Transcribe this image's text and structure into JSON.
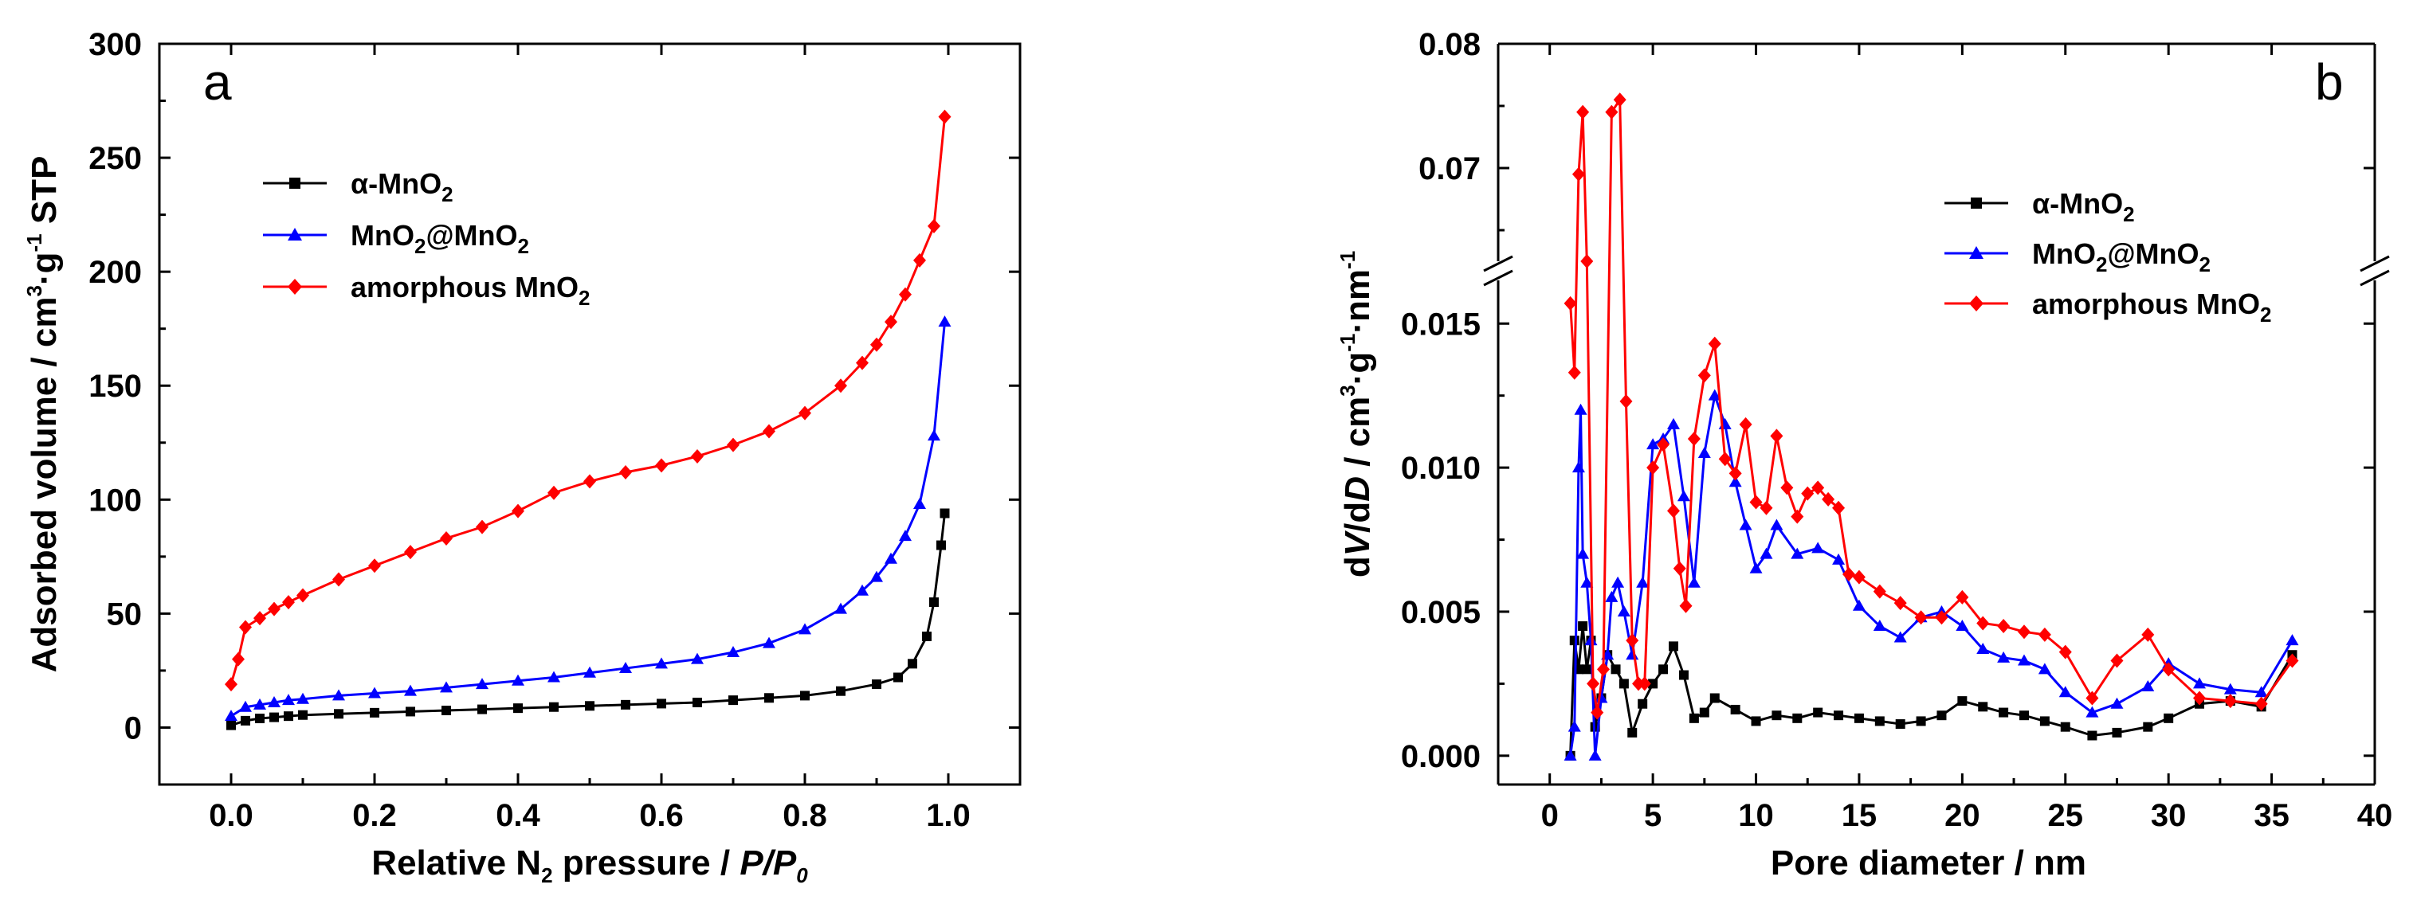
{
  "chart_data": [
    {
      "panel": "a",
      "type": "line",
      "xlabel_prefix": "Relative N",
      "xlabel_sub": "2",
      "xlabel_middle": " pressure / ",
      "xlabel_italic": "P/P",
      "xlabel_italic_sub": "0",
      "ylabel_text": "Adsorbed volume / cm",
      "ylabel_sup1": "3",
      "ylabel_dot": "·g",
      "ylabel_sup2": "-1",
      "ylabel_tail": " STP",
      "xlim": [
        -0.1,
        1.1
      ],
      "ylim": [
        -25,
        300
      ],
      "xticks": [
        0.0,
        0.2,
        0.4,
        0.6,
        0.8,
        1.0
      ],
      "xtick_labels": [
        "0.0",
        "0.2",
        "0.4",
        "0.6",
        "0.8",
        "1.0"
      ],
      "yticks": [
        0,
        50,
        100,
        150,
        200,
        250,
        300
      ],
      "ytick_labels": [
        "0",
        "50",
        "100",
        "150",
        "200",
        "250",
        "300"
      ],
      "legend_position": "upper-left",
      "series": [
        {
          "name": "α-MnO2",
          "label_main": "α-MnO",
          "label_sub": "2",
          "color": "#000000",
          "marker": "square",
          "x": [
            0.0,
            0.02,
            0.04,
            0.06,
            0.08,
            0.1,
            0.15,
            0.2,
            0.25,
            0.3,
            0.35,
            0.4,
            0.45,
            0.5,
            0.55,
            0.6,
            0.65,
            0.7,
            0.75,
            0.8,
            0.85,
            0.9,
            0.93,
            0.95,
            0.97,
            0.98,
            0.99,
            0.995
          ],
          "y": [
            1,
            3,
            4,
            4.5,
            5,
            5.5,
            6,
            6.5,
            7,
            7.5,
            8,
            8.5,
            9,
            9.5,
            10,
            10.5,
            11,
            12,
            13,
            14,
            16,
            19,
            22,
            28,
            40,
            55,
            80,
            94
          ]
        },
        {
          "name": "MnO2@MnO2",
          "label_main": "MnO",
          "label_sub": "2",
          "label_main2": "@MnO",
          "label_sub2": "2",
          "color": "#0000ff",
          "marker": "triangle",
          "x": [
            0.0,
            0.02,
            0.04,
            0.06,
            0.08,
            0.1,
            0.15,
            0.2,
            0.25,
            0.3,
            0.35,
            0.4,
            0.45,
            0.5,
            0.55,
            0.6,
            0.65,
            0.7,
            0.75,
            0.8,
            0.85,
            0.88,
            0.9,
            0.92,
            0.94,
            0.96,
            0.98,
            0.995
          ],
          "y": [
            5,
            9,
            10,
            11,
            12,
            12.5,
            14,
            15,
            16,
            17.5,
            19,
            20.5,
            22,
            24,
            26,
            28,
            30,
            33,
            37,
            43,
            52,
            60,
            66,
            74,
            84,
            98,
            128,
            178
          ]
        },
        {
          "name": "amorphous MnO2",
          "label_main": "amorphous MnO",
          "label_sub": "2",
          "color": "#ff0000",
          "marker": "diamond",
          "x": [
            0.0,
            0.01,
            0.02,
            0.04,
            0.06,
            0.08,
            0.1,
            0.15,
            0.2,
            0.25,
            0.3,
            0.35,
            0.4,
            0.45,
            0.5,
            0.55,
            0.6,
            0.65,
            0.7,
            0.75,
            0.8,
            0.85,
            0.88,
            0.9,
            0.92,
            0.94,
            0.96,
            0.98,
            0.995
          ],
          "y": [
            19,
            30,
            44,
            48,
            52,
            55,
            58,
            65,
            71,
            77,
            83,
            88,
            95,
            103,
            108,
            112,
            115,
            119,
            124,
            130,
            138,
            150,
            160,
            168,
            178,
            190,
            205,
            220,
            268
          ]
        }
      ]
    },
    {
      "panel": "b",
      "type": "line",
      "xlabel": "Pore diameter / nm",
      "ylabel_pre": "d",
      "ylabel_V": "V",
      "ylabel_mid": "/d",
      "ylabel_D": "D",
      "ylabel_units": " / cm",
      "ylabel_sup1": "3",
      "ylabel_dot1": "·g",
      "ylabel_sup2": "-1",
      "ylabel_dot2": "·nm",
      "ylabel_sup3": "-1",
      "xlim": [
        -2.5,
        40
      ],
      "ylim_lower": [
        -0.001,
        0.0165
      ],
      "ylim_upper": [
        0.0625,
        0.08
      ],
      "axis_break": true,
      "xticks": [
        0,
        5,
        10,
        15,
        20,
        25,
        30,
        35,
        40
      ],
      "xtick_labels": [
        "0",
        "5",
        "10",
        "15",
        "20",
        "25",
        "30",
        "35",
        "40"
      ],
      "yticks_lower": [
        0.0,
        0.005,
        0.01,
        0.015
      ],
      "ytick_labels_lower": [
        "0.000",
        "0.005",
        "0.010",
        "0.015"
      ],
      "yticks_upper": [
        0.07,
        0.08
      ],
      "ytick_labels_upper": [
        "0.07",
        "0.08"
      ],
      "legend_position": "upper-right",
      "series": [
        {
          "name": "α-MnO2",
          "label_main": "α-MnO",
          "label_sub": "2",
          "color": "#000000",
          "marker": "square",
          "x": [
            1.0,
            1.2,
            1.4,
            1.6,
            1.8,
            2.0,
            2.2,
            2.5,
            2.8,
            3.2,
            3.6,
            4.0,
            4.5,
            5.0,
            5.5,
            6.0,
            6.5,
            7.0,
            7.5,
            8.0,
            9.0,
            10.0,
            11.0,
            12.0,
            13.0,
            14.0,
            15.0,
            16.0,
            17.0,
            18.0,
            19.0,
            20.0,
            21.0,
            22.0,
            23.0,
            24.0,
            25.0,
            26.3,
            27.5,
            29.0,
            30.0,
            31.5,
            33.0,
            34.5,
            36.0
          ],
          "y": [
            0.0,
            0.004,
            0.003,
            0.0045,
            0.003,
            0.004,
            0.001,
            0.002,
            0.0035,
            0.003,
            0.0025,
            0.0008,
            0.0018,
            0.0025,
            0.003,
            0.0038,
            0.0028,
            0.0013,
            0.0015,
            0.002,
            0.0016,
            0.0012,
            0.0014,
            0.0013,
            0.0015,
            0.0014,
            0.0013,
            0.0012,
            0.0011,
            0.0012,
            0.0014,
            0.0019,
            0.0017,
            0.0015,
            0.0014,
            0.0012,
            0.001,
            0.0007,
            0.0008,
            0.001,
            0.0013,
            0.0018,
            0.0019,
            0.0017,
            0.0035
          ]
        },
        {
          "name": "MnO2@MnO2",
          "label_main": "MnO",
          "label_sub": "2",
          "label_main2": "@MnO",
          "label_sub2": "2",
          "color": "#0000ff",
          "marker": "triangle",
          "x": [
            1.0,
            1.2,
            1.4,
            1.5,
            1.6,
            1.8,
            2.0,
            2.2,
            2.5,
            2.8,
            3.0,
            3.3,
            3.6,
            4.0,
            4.5,
            5.0,
            5.5,
            6.0,
            6.5,
            7.0,
            7.5,
            8.0,
            8.5,
            9.0,
            9.5,
            10.0,
            10.5,
            11.0,
            12.0,
            13.0,
            14.0,
            15.0,
            16.0,
            17.0,
            18.0,
            19.0,
            20.0,
            21.0,
            22.0,
            23.0,
            24.0,
            25.0,
            26.3,
            27.5,
            29.0,
            30.0,
            31.5,
            33.0,
            34.5,
            36.0
          ],
          "y": [
            0.0,
            0.001,
            0.01,
            0.012,
            0.007,
            0.006,
            0.004,
            0.0,
            0.002,
            0.0035,
            0.0055,
            0.006,
            0.005,
            0.0035,
            0.006,
            0.0108,
            0.011,
            0.0115,
            0.009,
            0.006,
            0.0105,
            0.0125,
            0.0115,
            0.0095,
            0.008,
            0.0065,
            0.007,
            0.008,
            0.007,
            0.0072,
            0.0068,
            0.0052,
            0.0045,
            0.0041,
            0.0048,
            0.005,
            0.0045,
            0.0037,
            0.0034,
            0.0033,
            0.003,
            0.0022,
            0.0015,
            0.0018,
            0.0024,
            0.0032,
            0.0025,
            0.0023,
            0.0022,
            0.004
          ]
        },
        {
          "name": "amorphous MnO2",
          "label_main": "amorphous MnO",
          "label_sub": "2",
          "color": "#ff0000",
          "marker": "diamond",
          "x": [
            1.0,
            1.2,
            1.4,
            1.6,
            1.8,
            2.1,
            2.3,
            2.6,
            3.0,
            3.4,
            3.7,
            4.0,
            4.3,
            4.6,
            5.0,
            5.5,
            6.0,
            6.3,
            6.6,
            7.0,
            7.5,
            8.0,
            8.5,
            9.0,
            9.5,
            10.0,
            10.5,
            11.0,
            11.5,
            12.0,
            12.5,
            13.0,
            13.5,
            14.0,
            14.5,
            15.0,
            16.0,
            17.0,
            18.0,
            19.0,
            20.0,
            21.0,
            22.0,
            23.0,
            24.0,
            25.0,
            26.3,
            27.5,
            29.0,
            30.0,
            31.5,
            33.0,
            34.5,
            36.0
          ],
          "y": [
            0.0157,
            0.0133,
            0.0695,
            0.0745,
            0.0625,
            0.0025,
            0.0015,
            0.003,
            0.0745,
            0.0755,
            0.0123,
            0.004,
            0.0025,
            0.0025,
            0.01,
            0.0108,
            0.0085,
            0.0065,
            0.0052,
            0.011,
            0.0132,
            0.0143,
            0.0103,
            0.0098,
            0.0115,
            0.0088,
            0.0086,
            0.0111,
            0.0093,
            0.0083,
            0.0091,
            0.0093,
            0.0089,
            0.0086,
            0.0063,
            0.0062,
            0.0057,
            0.0053,
            0.0048,
            0.0048,
            0.0055,
            0.0046,
            0.0045,
            0.0043,
            0.0042,
            0.0036,
            0.002,
            0.0033,
            0.0042,
            0.003,
            0.002,
            0.0019,
            0.0018,
            0.0033
          ]
        }
      ]
    }
  ]
}
